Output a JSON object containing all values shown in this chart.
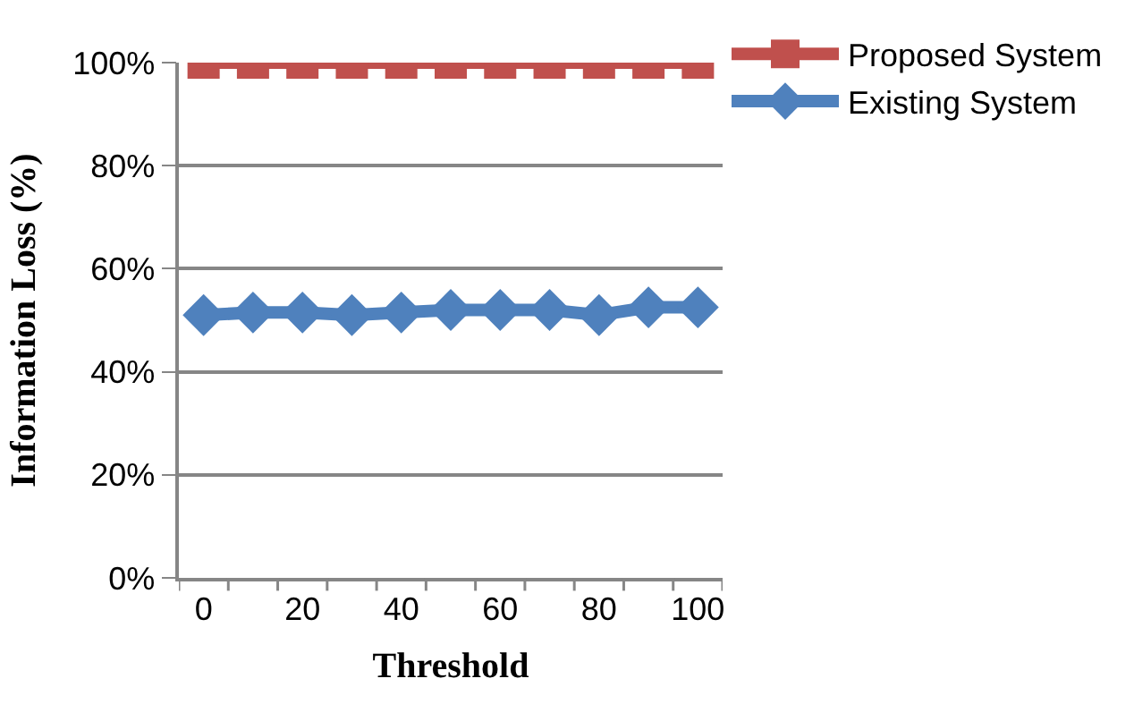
{
  "chart_data": {
    "type": "line",
    "xlabel": "Threshold",
    "ylabel": "Information Loss (%)",
    "categories": [
      "0",
      null,
      "20",
      null,
      "40",
      null,
      "60",
      null,
      "80",
      null,
      "100"
    ],
    "series": [
      {
        "name": "Proposed System",
        "color": "#c0504d",
        "marker": "square",
        "values": [
          100,
          100,
          100,
          100,
          100,
          100,
          100,
          100,
          100,
          100,
          100
        ]
      },
      {
        "name": "Existing System",
        "color": "#4f81bd",
        "marker": "diamond",
        "values": [
          51,
          51.5,
          51.5,
          51,
          51.5,
          52,
          52,
          52,
          51,
          52.5,
          52.5
        ]
      }
    ],
    "ylim": [
      0,
      100
    ],
    "yticks": [
      {
        "value": 0,
        "label": "0%"
      },
      {
        "value": 20,
        "label": "20%"
      },
      {
        "value": 40,
        "label": "40%"
      },
      {
        "value": 60,
        "label": "60%"
      },
      {
        "value": 80,
        "label": "80%"
      },
      {
        "value": 100,
        "label": "100%"
      }
    ],
    "grid": "y",
    "legend": "top right",
    "line_style": "solid"
  }
}
